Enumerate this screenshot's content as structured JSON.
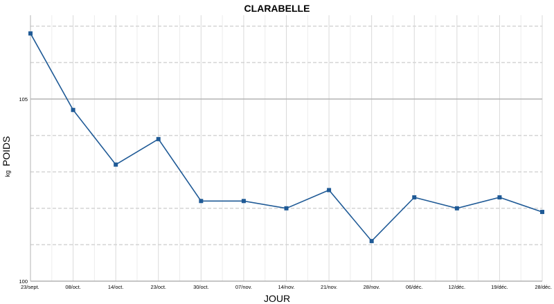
{
  "chart_data": {
    "type": "line",
    "title": "CLARABELLE",
    "xlabel": "JOUR",
    "ylabel": "POIDS",
    "ylabel_unit": "kg",
    "categories": [
      "23/sept.",
      "08/oct.",
      "14/oct.",
      "23/oct.",
      "30/oct.",
      "07/nov.",
      "14/nov.",
      "21/nov.",
      "28/nov.",
      "06/déc.",
      "12/déc.",
      "19/déc.",
      "28/déc."
    ],
    "series": [
      {
        "values": [
          106.8,
          104.7,
          103.2,
          103.9,
          102.2,
          102.2,
          102.0,
          102.5,
          101.1,
          102.3,
          102.0,
          102.3,
          101.9
        ],
        "color": "#1f5a96"
      }
    ],
    "ylim": [
      100,
      107.3
    ],
    "y_major_ticks": [
      100,
      105
    ],
    "y_minor_step": 1,
    "grid": true,
    "legend": "none"
  }
}
